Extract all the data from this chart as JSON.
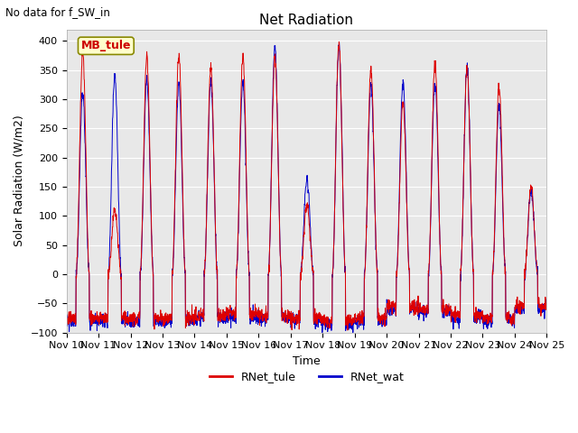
{
  "title": "Net Radiation",
  "top_left_text": "No data for f_SW_in",
  "ylabel": "Solar Radiation (W/m2)",
  "xlabel": "Time",
  "ylim": [
    -100,
    420
  ],
  "yticks": [
    -100,
    -50,
    0,
    50,
    100,
    150,
    200,
    250,
    300,
    350,
    400
  ],
  "color_tule": "#dd0000",
  "color_wat": "#0000cc",
  "legend_box_label": "MB_tule",
  "legend_box_facecolor": "#ffffcc",
  "legend_box_edgecolor": "#888800",
  "line_legend": [
    "RNet_tule",
    "RNet_wat"
  ],
  "background_color": "#e8e8e8",
  "title_fontsize": 11,
  "axis_label_fontsize": 9,
  "tick_label_fontsize": 8,
  "n_days": 15,
  "start_day": 10,
  "peaks_tule": [
    380,
    110,
    370,
    378,
    356,
    375,
    374,
    120,
    395,
    350,
    296,
    363,
    356,
    322,
    150
  ],
  "peaks_wat": [
    310,
    340,
    335,
    328,
    330,
    330,
    390,
    160,
    390,
    325,
    330,
    330,
    355,
    290,
    142
  ],
  "night_base": [
    -75,
    -75,
    -75,
    -75,
    -70,
    -68,
    -70,
    -75,
    -80,
    -75,
    -55,
    -60,
    -70,
    -75,
    -55
  ]
}
